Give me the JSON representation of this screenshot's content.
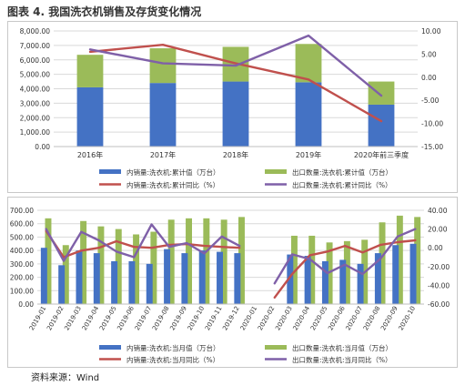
{
  "figure_title": "图表 4. 我国洗衣机销售及存货变化情况",
  "source_note": "资料来源：Wind",
  "colors": {
    "domestic_bar": "#4472C4",
    "export_bar": "#9BBB59",
    "domestic_line": "#C0504D",
    "export_line": "#7F60A8"
  },
  "chart_data": [
    {
      "type": "bar",
      "stacked": true,
      "categories": [
        "2016年",
        "2017年",
        "2018年",
        "2019年",
        "2020年前三季度"
      ],
      "series": [
        {
          "name": "内销量:洗衣机:累计值（万台）",
          "kind": "bar",
          "axis": "left",
          "color": "#4472C4",
          "values": [
            4100,
            4400,
            4500,
            4450,
            2900
          ]
        },
        {
          "name": "出口数量:洗衣机:累计值（万台）",
          "kind": "bar",
          "axis": "left",
          "color": "#9BBB59",
          "values": [
            2250,
            2400,
            2400,
            2650,
            1600
          ]
        },
        {
          "name": "内销量:洗衣机:累计同比（%）",
          "kind": "line",
          "axis": "right",
          "color": "#C0504D",
          "values": [
            5.5,
            7.0,
            3.0,
            -0.5,
            -9.5
          ]
        },
        {
          "name": "出口数量:洗衣机:累计同比（%）",
          "kind": "line",
          "axis": "right",
          "color": "#7F60A8",
          "values": [
            6.0,
            3.0,
            2.5,
            9.0,
            -4.0
          ]
        }
      ],
      "ylim_left": [
        0,
        8000
      ],
      "yticks_left": [
        "0.00",
        "1,000.00",
        "2,000.00",
        "3,000.00",
        "4,000.00",
        "5,000.00",
        "6,000.00",
        "7,000.00",
        "8,000.00"
      ],
      "ylim_right": [
        -15,
        10
      ],
      "yticks_right": [
        "-15.00",
        "-10.00",
        "-5.00",
        "0.00",
        "5.00",
        "10.00"
      ],
      "grid": true,
      "legend_position": "bottom"
    },
    {
      "type": "bar",
      "stacked": false,
      "overlapping": true,
      "categories": [
        "2019-01",
        "2019-02",
        "2019-03",
        "2019-04",
        "2019-05",
        "2019-06",
        "2019-07",
        "2019-08",
        "2019-09",
        "2019-10",
        "2019-11",
        "2019-12",
        "2020-01",
        "2020-02",
        "2020-03",
        "2020-04",
        "2020-05",
        "2020-06",
        "2020-07",
        "2020-08",
        "2020-09",
        "2020-10"
      ],
      "series": [
        {
          "name": "内销量:洗衣机:当月值（万台）",
          "kind": "bar",
          "axis": "left",
          "color": "#4472C4",
          "values": [
            420,
            290,
            400,
            380,
            320,
            320,
            300,
            410,
            380,
            400,
            390,
            380,
            null,
            0,
            370,
            360,
            320,
            330,
            300,
            380,
            440,
            450
          ]
        },
        {
          "name": "出口数量:洗衣机:当月值（万台）",
          "kind": "bar",
          "axis": "left",
          "color": "#9BBB59",
          "values": [
            640,
            440,
            620,
            580,
            560,
            520,
            540,
            630,
            640,
            640,
            630,
            650,
            null,
            0,
            510,
            510,
            460,
            470,
            480,
            610,
            660,
            650
          ]
        },
        {
          "name": "内销量:洗衣机:当月同比（%）",
          "kind": "line",
          "axis": "right",
          "color": "#C0504D",
          "values": [
            18,
            -10,
            -3,
            0,
            7,
            1,
            0,
            3,
            4,
            2,
            1,
            0,
            null,
            -53,
            -28,
            -8,
            -4,
            2,
            -5,
            3,
            6,
            8
          ]
        },
        {
          "name": "出口数量:洗衣机:当月同比（%）",
          "kind": "line",
          "axis": "right",
          "color": "#7F60A8",
          "values": [
            20,
            -14,
            17,
            8,
            -4,
            -10,
            25,
            1,
            5,
            -6,
            12,
            2,
            null,
            -38,
            -7,
            -12,
            -27,
            -18,
            -28,
            -12,
            12,
            20
          ]
        }
      ],
      "ylim_left": [
        0,
        700
      ],
      "yticks_left": [
        "0.00",
        "100.00",
        "200.00",
        "300.00",
        "400.00",
        "500.00",
        "600.00",
        "700.00"
      ],
      "ylim_right": [
        -60,
        40
      ],
      "yticks_right": [
        "-60.00",
        "-40.00",
        "-20.00",
        "0.00",
        "20.00",
        "40.00"
      ],
      "grid": true,
      "legend_position": "bottom"
    }
  ]
}
